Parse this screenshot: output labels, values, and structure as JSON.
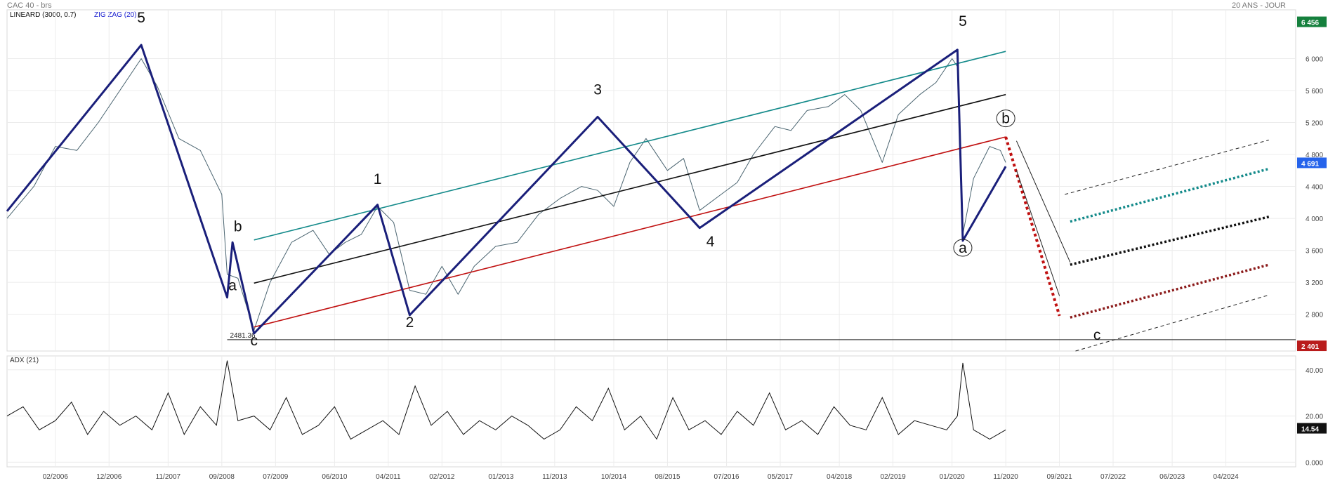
{
  "header": {
    "instrument": "CAC 40 - brs",
    "timeframe": "20 ANS - JOUR",
    "indicators": [
      "LINEARD (3000, 0.7)",
      "ZIG ZAG (20)"
    ]
  },
  "colors": {
    "price": "#4a6470",
    "zigzag": "#1a1f7a",
    "channel_upper": "#138a8a",
    "channel_mid": "#111111",
    "channel_lower": "#c01010",
    "projection": "#c01010",
    "badge_green": "#15803d",
    "badge_blue": "#2563eb",
    "badge_red": "#b91c1c",
    "badge_black": "#111111"
  },
  "chart_data": [
    {
      "type": "line",
      "title": "CAC 40 - brs",
      "x_axis": {
        "ticks": [
          "02/2006",
          "12/2006",
          "11/2007",
          "09/2008",
          "07/2009",
          "06/2010",
          "04/2011",
          "02/2012",
          "01/2013",
          "11/2013",
          "10/2014",
          "08/2015",
          "07/2016",
          "05/2017",
          "04/2018",
          "02/2019",
          "01/2020",
          "11/2020",
          "09/2021",
          "07/2022",
          "06/2023",
          "04/2024"
        ],
        "range": [
          "2005-05",
          "2025-05"
        ]
      },
      "y_axis": {
        "ticks": [
          2800,
          3200,
          3600,
          4000,
          4400,
          4800,
          5200,
          5600,
          6000
        ],
        "tick_labels": [
          "2 800",
          "3 200",
          "3 600",
          "4 000",
          "4 400",
          "4 800",
          "5 200",
          "5 600",
          "6 000"
        ],
        "ylim": [
          2340,
          6540
        ],
        "side": "right"
      },
      "grid": true,
      "series": [
        {
          "name": "LINEARD (3000, 0.7)",
          "style": "channel-upper",
          "x": [
            "2009-03",
            "2020-11"
          ],
          "y": [
            3730,
            6090
          ]
        },
        {
          "name": "LINEARD (3000, 0.7)",
          "style": "channel-mid",
          "x": [
            "2009-03",
            "2020-11"
          ],
          "y": [
            3190,
            5550
          ]
        },
        {
          "name": "LINEARD (3000, 0.7)",
          "style": "channel-lower",
          "x": [
            "2009-03",
            "2020-11"
          ],
          "y": [
            2640,
            5020
          ]
        },
        {
          "name": "ZIG ZAG (20)",
          "style": "zigzag",
          "x": [
            "2005-05",
            "2007-06",
            "2008-10",
            "2008-11",
            "2009-03",
            "2011-02",
            "2011-08",
            "2014-07",
            "2016-02",
            "2020-02",
            "2020-03",
            "2020-11"
          ],
          "y": [
            4090,
            6170,
            3010,
            3700,
            2560,
            4170,
            2790,
            5270,
            3880,
            6110,
            3720,
            4650
          ]
        },
        {
          "name": "",
          "style": "price",
          "x": [
            "2005-05",
            "2005-10",
            "2006-02",
            "2006-06",
            "2006-10",
            "2007-02",
            "2007-06",
            "2007-09",
            "2008-01",
            "2008-05",
            "2008-09",
            "2008-10",
            "2008-12",
            "2009-03",
            "2009-06",
            "2009-10",
            "2010-02",
            "2010-05",
            "2010-08",
            "2010-11",
            "2011-02",
            "2011-05",
            "2011-08",
            "2011-11",
            "2012-02",
            "2012-05",
            "2012-08",
            "2012-12",
            "2013-04",
            "2013-08",
            "2013-12",
            "2014-04",
            "2014-07",
            "2014-10",
            "2015-01",
            "2015-04",
            "2015-08",
            "2015-11",
            "2016-02",
            "2016-06",
            "2016-09",
            "2016-12",
            "2017-04",
            "2017-07",
            "2017-10",
            "2018-02",
            "2018-05",
            "2018-08",
            "2018-12",
            "2019-03",
            "2019-07",
            "2019-10",
            "2020-01",
            "2020-02",
            "2020-03",
            "2020-05",
            "2020-08",
            "2020-10",
            "2020-11"
          ],
          "y": [
            4000,
            4400,
            4900,
            4850,
            5200,
            5600,
            6000,
            5650,
            5000,
            4850,
            4300,
            3300,
            3250,
            2600,
            3200,
            3700,
            3850,
            3550,
            3700,
            3800,
            4150,
            3950,
            3100,
            3050,
            3400,
            3050,
            3400,
            3650,
            3700,
            4050,
            4250,
            4400,
            4350,
            4150,
            4700,
            5000,
            4600,
            4750,
            4100,
            4300,
            4450,
            4800,
            5150,
            5100,
            5350,
            5400,
            5550,
            5350,
            4700,
            5300,
            5550,
            5700,
            6000,
            5900,
            3800,
            4500,
            4900,
            4850,
            4700
          ]
        },
        {
          "name": "",
          "style": "projection-c",
          "x": [
            "2020-11",
            "2021-09"
          ],
          "y": [
            5020,
            2780
          ]
        },
        {
          "name": "",
          "style": "target-upper",
          "x": [
            "2021-10",
            "2024-12"
          ],
          "y": [
            4300,
            4980
          ]
        },
        {
          "name": "",
          "style": "target-teal",
          "x": [
            "2021-11",
            "2024-12"
          ],
          "y": [
            3960,
            4620
          ]
        },
        {
          "name": "",
          "style": "target-black",
          "x": [
            "2021-11",
            "2024-12"
          ],
          "y": [
            3420,
            4020
          ]
        },
        {
          "name": "",
          "style": "target-red",
          "x": [
            "2021-11",
            "2024-12"
          ],
          "y": [
            2760,
            3420
          ]
        },
        {
          "name": "",
          "style": "target-lower",
          "x": [
            "2021-12",
            "2024-12"
          ],
          "y": [
            2340,
            3040
          ]
        },
        {
          "name": "",
          "style": "bear-channel-a",
          "x": [
            "2021-01",
            "2021-11"
          ],
          "y": [
            4970,
            3450
          ]
        },
        {
          "name": "",
          "style": "bear-channel-b",
          "x": [
            "2021-01",
            "2021-09"
          ],
          "y": [
            4600,
            3030
          ]
        }
      ],
      "horizontal_lines": [
        {
          "value": 2481.36,
          "label": "2481.36",
          "x_start": "2008-10"
        }
      ],
      "annotations": [
        {
          "text": "5",
          "x": "2007-06",
          "y": 6450
        },
        {
          "text": "a",
          "x": "2008-11",
          "y": 3100
        },
        {
          "text": "b",
          "x": "2008-12",
          "y": 3840
        },
        {
          "text": "c",
          "x": "2009-03",
          "y": 2410
        },
        {
          "text": "1",
          "x": "2011-02",
          "y": 4430
        },
        {
          "text": "2",
          "x": "2011-08",
          "y": 2640
        },
        {
          "text": "3",
          "x": "2014-07",
          "y": 5550
        },
        {
          "text": "4",
          "x": "2016-04",
          "y": 3650
        },
        {
          "text": "5",
          "x": "2020-03",
          "y": 6410
        },
        {
          "text": "a",
          "x": "2020-03",
          "y": 3570,
          "circled": true
        },
        {
          "text": "b",
          "x": "2020-11",
          "y": 5190,
          "circled": true
        },
        {
          "text": "c",
          "x": "2022-04",
          "y": 2480
        }
      ],
      "price_badges": [
        {
          "value": "6 456",
          "y": 6456,
          "color": "green"
        },
        {
          "value": "4 691",
          "y": 4691,
          "color": "blue"
        },
        {
          "value": "2 401",
          "y": 2401,
          "color": "red"
        }
      ]
    },
    {
      "type": "line",
      "title": "ADX (21)",
      "y_axis": {
        "ticks": [
          0,
          20,
          40
        ],
        "tick_labels": [
          "0.000",
          "20.00",
          "40.00"
        ],
        "ylim": [
          -2,
          46
        ],
        "side": "right"
      },
      "grid": true,
      "series": [
        {
          "name": "ADX (21)",
          "x": [
            "2005-05",
            "2005-08",
            "2005-11",
            "2006-02",
            "2006-05",
            "2006-08",
            "2006-11",
            "2007-02",
            "2007-05",
            "2007-08",
            "2007-11",
            "2008-02",
            "2008-05",
            "2008-08",
            "2008-10",
            "2008-12",
            "2009-03",
            "2009-06",
            "2009-09",
            "2009-12",
            "2010-03",
            "2010-06",
            "2010-09",
            "2010-12",
            "2011-03",
            "2011-06",
            "2011-09",
            "2011-12",
            "2012-03",
            "2012-06",
            "2012-09",
            "2012-12",
            "2013-03",
            "2013-06",
            "2013-09",
            "2013-12",
            "2014-03",
            "2014-06",
            "2014-09",
            "2014-12",
            "2015-03",
            "2015-06",
            "2015-09",
            "2015-12",
            "2016-03",
            "2016-06",
            "2016-09",
            "2016-12",
            "2017-03",
            "2017-06",
            "2017-09",
            "2017-12",
            "2018-03",
            "2018-06",
            "2018-09",
            "2018-12",
            "2019-03",
            "2019-06",
            "2019-09",
            "2019-12",
            "2020-02",
            "2020-03",
            "2020-05",
            "2020-08",
            "2020-11"
          ],
          "y": [
            20,
            24,
            14,
            18,
            26,
            12,
            22,
            16,
            20,
            14,
            30,
            12,
            24,
            16,
            44,
            18,
            20,
            14,
            28,
            12,
            16,
            24,
            10,
            14,
            18,
            12,
            33,
            16,
            22,
            12,
            18,
            14,
            20,
            16,
            10,
            14,
            24,
            18,
            32,
            14,
            20,
            10,
            28,
            14,
            18,
            12,
            22,
            16,
            30,
            14,
            18,
            12,
            24,
            16,
            14,
            28,
            12,
            18,
            16,
            14,
            20,
            43,
            14,
            10,
            14
          ]
        }
      ],
      "price_badges": [
        {
          "value": "14.54",
          "y": 14.54,
          "color": "black"
        }
      ]
    }
  ]
}
